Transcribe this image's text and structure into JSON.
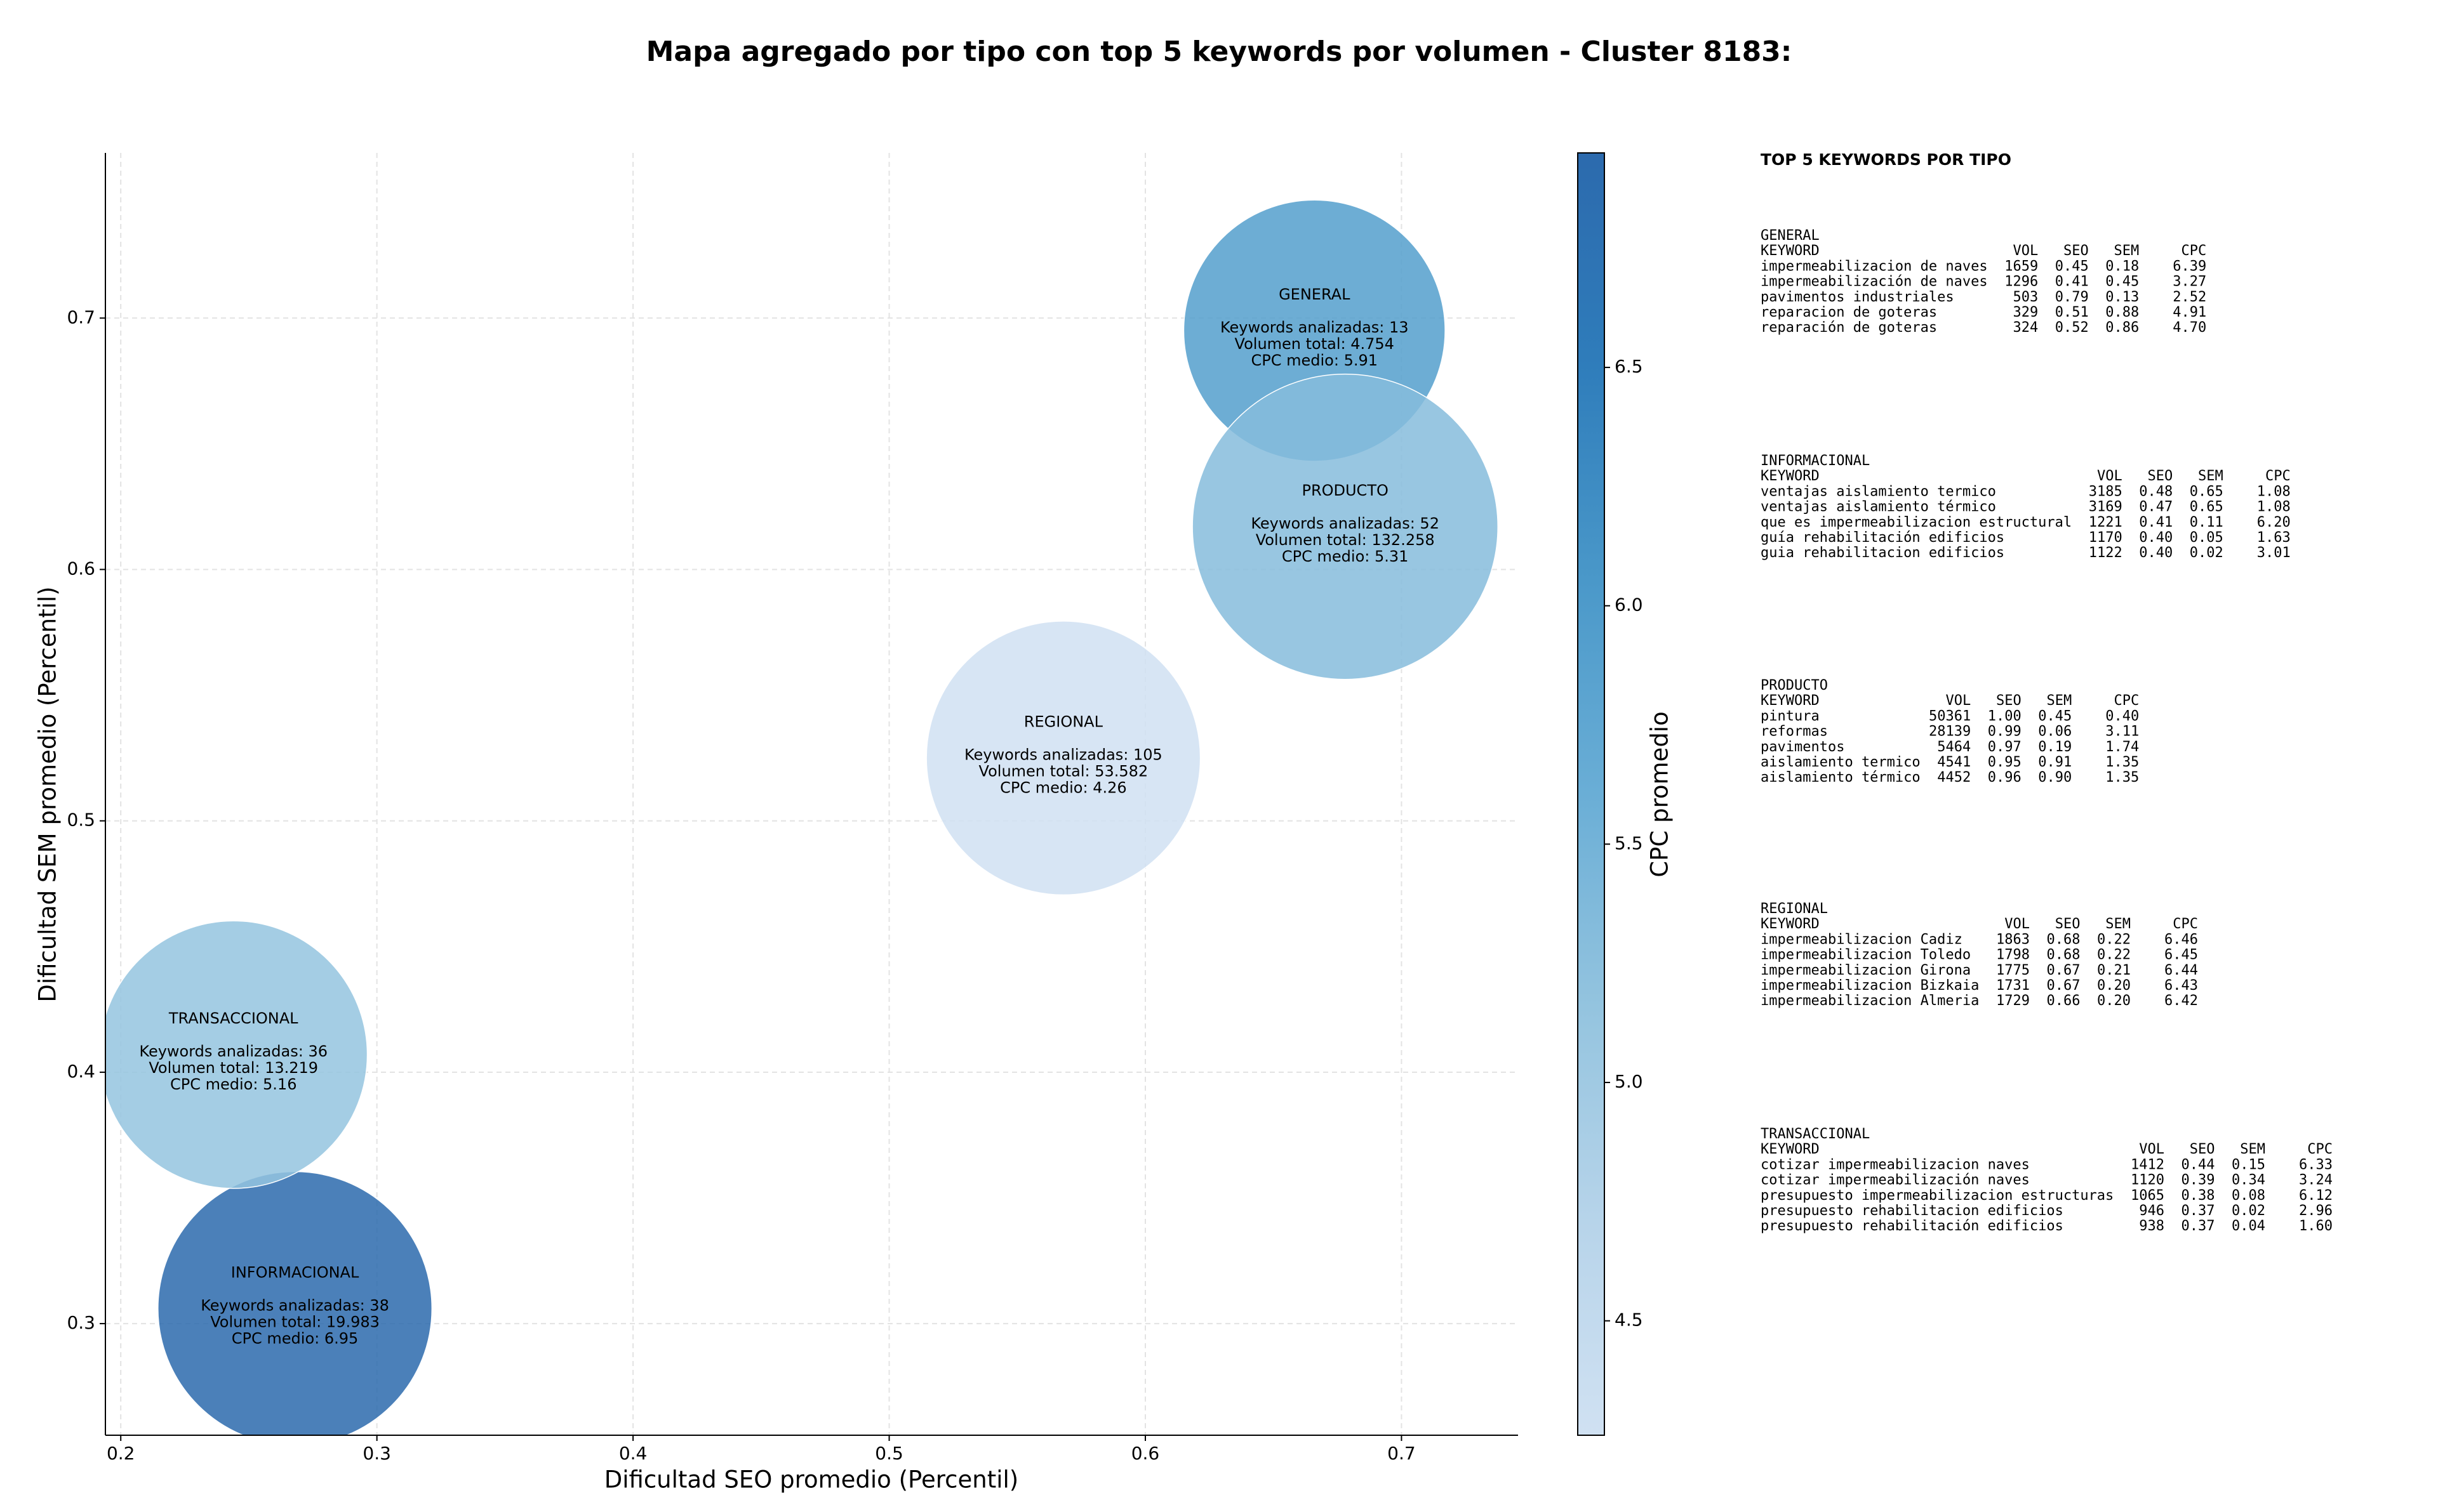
{
  "chart_data": {
    "type": "bubble",
    "title": "Mapa agregado por tipo con top 5 keywords por volumen - Cluster 8183:",
    "xlabel": "Dificultad SEO promedio (Percentil)",
    "ylabel": "Dificultad SEM promedio (Percentil)",
    "xlim": [
      0.194,
      0.7455
    ],
    "ylim": [
      0.2556,
      0.7657
    ],
    "xticks": [
      0.2,
      0.3,
      0.4,
      0.5,
      0.6,
      0.7
    ],
    "yticks": [
      0.3,
      0.4,
      0.5,
      0.6,
      0.7
    ],
    "grid": true,
    "alpha": 0.85,
    "colormap": [
      "#d0e1f2",
      "#b7d4ea",
      "#94c4df",
      "#6aaed6",
      "#4a98c9",
      "#2f7dbb",
      "#2c6aad"
    ],
    "colorbar": {
      "label": "CPC promedio",
      "lim": [
        4.26,
        6.95
      ],
      "ticks": [
        4.5,
        {
          "value": 5,
          "label": "5.0"
        },
        5.5,
        {
          "value": 6,
          "label": "6.0"
        },
        6.5
      ]
    },
    "points": [
      {
        "name": "GENERAL",
        "x": 0.666,
        "y": 0.695,
        "size": 83,
        "cpc": 5.91,
        "annotation": [
          "Keywords analizadas: 13",
          "Volumen total: 4.754",
          "CPC medio: 5.91"
        ]
      },
      {
        "name": "INFORMACIONAL",
        "x": 0.268,
        "y": 0.306,
        "size": 87,
        "cpc": 6.95,
        "annotation": [
          "Keywords analizadas: 38",
          "Volumen total: 19.983",
          "CPC medio: 6.95"
        ]
      },
      {
        "name": "PRODUCTO",
        "x": 0.678,
        "y": 0.617,
        "size": 97,
        "cpc": 5.31,
        "annotation": [
          "Keywords analizadas: 52",
          "Volumen total: 132.258",
          "CPC medio: 5.31"
        ]
      },
      {
        "name": "REGIONAL",
        "x": 0.568,
        "y": 0.525,
        "size": 87,
        "cpc": 4.26,
        "annotation": [
          "Keywords analizadas: 105",
          "Volumen total: 53.582",
          "CPC medio: 4.26"
        ]
      },
      {
        "name": "TRANSACCIONAL",
        "x": 0.244,
        "y": 0.407,
        "size": 85,
        "cpc": 5.16,
        "annotation": [
          "Keywords analizadas: 36",
          "Volumen total: 13.219",
          "CPC medio: 5.16"
        ]
      }
    ]
  },
  "top_keywords": {
    "title": "TOP 5 KEYWORDS POR TIPO",
    "columns": [
      "KEYWORD",
      "VOL",
      "SEO",
      "SEM",
      "CPC"
    ],
    "groups": [
      {
        "name": "GENERAL",
        "rows": [
          [
            "impermeabilizacion de naves",
            "1659",
            "0.45",
            "0.18",
            "6.39"
          ],
          [
            "impermeabilización de naves",
            "1296",
            "0.41",
            "0.45",
            "3.27"
          ],
          [
            "pavimentos industriales",
            "503",
            "0.79",
            "0.13",
            "2.52"
          ],
          [
            "reparacion de goteras",
            "329",
            "0.51",
            "0.88",
            "4.91"
          ],
          [
            "reparación de goteras",
            "324",
            "0.52",
            "0.86",
            "4.70"
          ]
        ]
      },
      {
        "name": "INFORMACIONAL",
        "rows": [
          [
            "ventajas aislamiento termico",
            "3185",
            "0.48",
            "0.65",
            "1.08"
          ],
          [
            "ventajas aislamiento térmico",
            "3169",
            "0.47",
            "0.65",
            "1.08"
          ],
          [
            "que es impermeabilizacion estructural",
            "1221",
            "0.41",
            "0.11",
            "6.20"
          ],
          [
            "guía rehabilitación edificios",
            "1170",
            "0.40",
            "0.05",
            "1.63"
          ],
          [
            "guia rehabilitacion edificios",
            "1122",
            "0.40",
            "0.02",
            "3.01"
          ]
        ]
      },
      {
        "name": "PRODUCTO",
        "rows": [
          [
            "pintura",
            "50361",
            "1.00",
            "0.45",
            "0.40"
          ],
          [
            "reformas",
            "28139",
            "0.99",
            "0.06",
            "3.11"
          ],
          [
            "pavimentos",
            "5464",
            "0.97",
            "0.19",
            "1.74"
          ],
          [
            "aislamiento termico",
            "4541",
            "0.95",
            "0.91",
            "1.35"
          ],
          [
            "aislamiento térmico",
            "4452",
            "0.96",
            "0.90",
            "1.35"
          ]
        ]
      },
      {
        "name": "REGIONAL",
        "rows": [
          [
            "impermeabilizacion Cadiz",
            "1863",
            "0.68",
            "0.22",
            "6.46"
          ],
          [
            "impermeabilizacion Toledo",
            "1798",
            "0.68",
            "0.22",
            "6.45"
          ],
          [
            "impermeabilizacion Girona",
            "1775",
            "0.67",
            "0.21",
            "6.44"
          ],
          [
            "impermeabilizacion Bizkaia",
            "1731",
            "0.67",
            "0.20",
            "6.43"
          ],
          [
            "impermeabilizacion Almeria",
            "1729",
            "0.66",
            "0.20",
            "6.42"
          ]
        ]
      },
      {
        "name": "TRANSACCIONAL",
        "rows": [
          [
            "cotizar impermeabilizacion naves",
            "1412",
            "0.44",
            "0.15",
            "6.33"
          ],
          [
            "cotizar impermeabilización naves",
            "1120",
            "0.39",
            "0.34",
            "3.24"
          ],
          [
            "presupuesto impermeabilizacion estructuras",
            "1065",
            "0.38",
            "0.08",
            "6.12"
          ],
          [
            "presupuesto rehabilitacion edificios",
            "946",
            "0.37",
            "0.02",
            "2.96"
          ],
          [
            "presupuesto rehabilitación edificios",
            "938",
            "0.37",
            "0.04",
            "1.60"
          ]
        ]
      }
    ]
  }
}
